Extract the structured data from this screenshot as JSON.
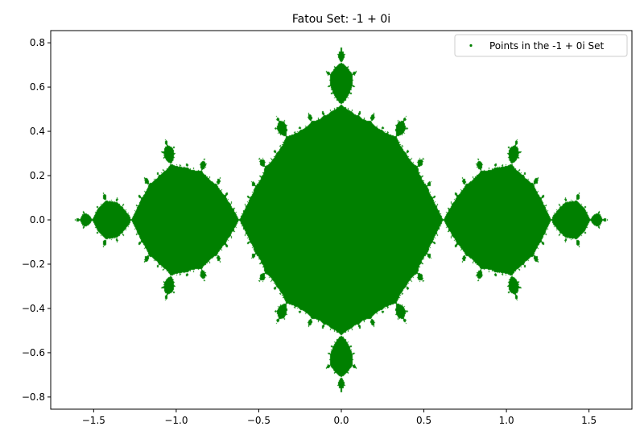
{
  "chart_data": {
    "type": "scatter",
    "title": "Fatou Set: -1 + 0i",
    "xlabel": "",
    "ylabel": "",
    "xlim": [
      -1.76,
      1.76
    ],
    "ylim": [
      -0.855,
      0.855
    ],
    "xticks": [
      -1.5,
      -1.0,
      -0.5,
      0.0,
      0.5,
      1.0,
      1.5
    ],
    "xtick_labels": [
      "−1.5",
      "−1.0",
      "−0.5",
      "0.0",
      "0.5",
      "1.0",
      "1.5"
    ],
    "yticks": [
      -0.8,
      -0.6,
      -0.4,
      -0.2,
      0.0,
      0.2,
      0.4,
      0.6,
      0.8
    ],
    "ytick_labels": [
      "−0.8",
      "−0.6",
      "−0.4",
      "−0.2",
      "0.0",
      "0.2",
      "0.4",
      "0.6",
      "0.8"
    ],
    "grid": false,
    "legend_position": "top-right",
    "series": [
      {
        "name": "Points in the -1 + 0i Set",
        "color": "#008000",
        "c_real": -1,
        "c_imag": 0,
        "max_iterations": 60,
        "escape_radius": 2
      }
    ]
  }
}
